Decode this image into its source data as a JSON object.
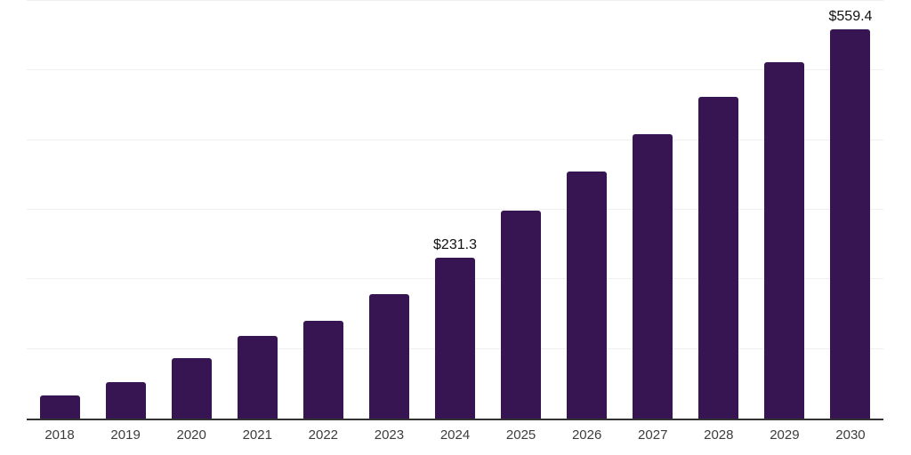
{
  "chart_data": {
    "type": "bar",
    "title": "",
    "xlabel": "",
    "ylabel": "",
    "categories": [
      "2018",
      "2019",
      "2020",
      "2021",
      "2022",
      "2023",
      "2024",
      "2025",
      "2026",
      "2027",
      "2028",
      "2029",
      "2030"
    ],
    "values": [
      33.5,
      52.1,
      86.8,
      118.2,
      140.2,
      179.2,
      231.3,
      299.0,
      354.9,
      409.1,
      462.1,
      511.7,
      559.4
    ],
    "bar_labels": [
      "",
      "",
      "",
      "",
      "",
      "",
      "$231.3",
      "",
      "",
      "",
      "",
      "",
      "$559.4"
    ],
    "ylim": [
      0,
      600
    ],
    "gridline_values": [
      100,
      200,
      300,
      400,
      500,
      600
    ],
    "grid": "horizontal-only",
    "legend_position": "none",
    "colors": {
      "bar": "#371553",
      "axis_line": "#333333",
      "gridline": "#f0f0f0",
      "tick_label": "#3d3d3d",
      "data_label": "#111111"
    }
  }
}
